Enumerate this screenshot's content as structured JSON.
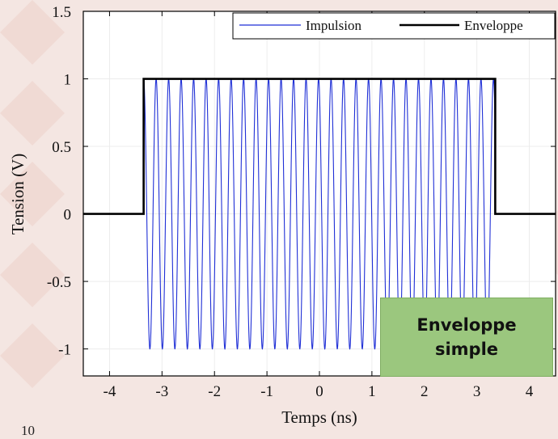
{
  "chart_data": {
    "type": "line",
    "xlabel": "Temps (ns)",
    "ylabel": "Tension (V)",
    "xlim": [
      -4.5,
      4.5
    ],
    "ylim": [
      -1.2,
      1.5
    ],
    "xticks": [
      -4,
      -3,
      -2,
      -1,
      0,
      1,
      2,
      3,
      4
    ],
    "yticks": [
      -1,
      -0.5,
      0,
      0.5,
      1,
      1.5
    ],
    "xtick_labels": [
      "-4",
      "-3",
      "-2",
      "-1",
      "0",
      "1",
      "2",
      "3",
      "4"
    ],
    "ytick_labels": [
      "-1",
      "-0.5",
      "0",
      "0.5",
      "1",
      "1.5"
    ],
    "grid": true,
    "legend_position": "top-right",
    "series": [
      {
        "name": "Impulsion",
        "color": "#1f2fd6",
        "kind": "oscillation",
        "t_start": -3.35,
        "t_end": 3.35,
        "amplitude": 1,
        "frequency_ghz": 4.2
      },
      {
        "name": "Enveloppe",
        "color": "#000000",
        "x": [
          -4.5,
          -3.35,
          -3.35,
          3.35,
          3.35,
          4.5
        ],
        "y": [
          0,
          0,
          1,
          1,
          0,
          0
        ]
      }
    ]
  },
  "annotation": {
    "text": "Enveloppe simple"
  },
  "footer": {
    "text": "10"
  }
}
